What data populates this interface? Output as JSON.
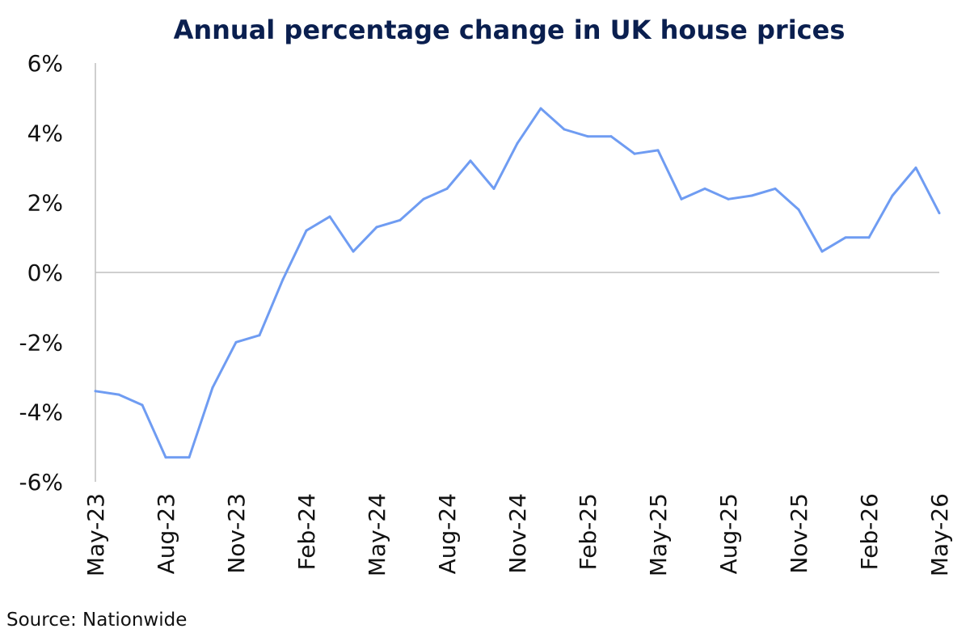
{
  "chart_data": {
    "type": "line",
    "title": "Annual percentage change in UK house prices",
    "xlabel": "",
    "ylabel": "",
    "ylim": [
      -6,
      6
    ],
    "yticks": [
      "6%",
      "4%",
      "2%",
      "0%",
      "-2%",
      "-4%",
      "-6%"
    ],
    "x_tick_labels": [
      "May-23",
      "Aug-23",
      "Nov-23",
      "Feb-24",
      "May-24",
      "Aug-24",
      "Nov-24",
      "Feb-25",
      "May-25",
      "Aug-25",
      "Nov-25",
      "Feb-26",
      "May-26"
    ],
    "x": [
      "May-23",
      "Jun-23",
      "Jul-23",
      "Aug-23",
      "Sep-23",
      "Oct-23",
      "Nov-23",
      "Dec-23",
      "Jan-24",
      "Feb-24",
      "Mar-24",
      "Apr-24",
      "May-24",
      "Jun-24",
      "Jul-24",
      "Aug-24",
      "Sep-24",
      "Oct-24",
      "Nov-24",
      "Dec-24",
      "Jan-25",
      "Feb-25",
      "Mar-25",
      "Apr-25",
      "May-25",
      "Jun-25",
      "Jul-25",
      "Aug-25",
      "Sep-25",
      "Oct-25",
      "Nov-25",
      "Dec-25",
      "Jan-26",
      "Feb-26",
      "Mar-26",
      "Apr-26",
      "May-26"
    ],
    "series": [
      {
        "values": [
          -3.4,
          -3.5,
          -3.8,
          -5.3,
          -5.3,
          -3.3,
          -2.0,
          -1.8,
          -0.2,
          1.2,
          1.6,
          0.6,
          1.3,
          1.5,
          2.1,
          2.4,
          3.2,
          2.4,
          3.7,
          4.7,
          4.1,
          3.9,
          3.9,
          3.4,
          3.5,
          2.1,
          2.4,
          2.1,
          2.2,
          2.4,
          1.8,
          0.6,
          1.0,
          1.0,
          2.2,
          3.0,
          1.7
        ],
        "color": "#6f9cf2"
      }
    ],
    "grid": false,
    "legend": "none",
    "source": "Source: Nationwide"
  }
}
